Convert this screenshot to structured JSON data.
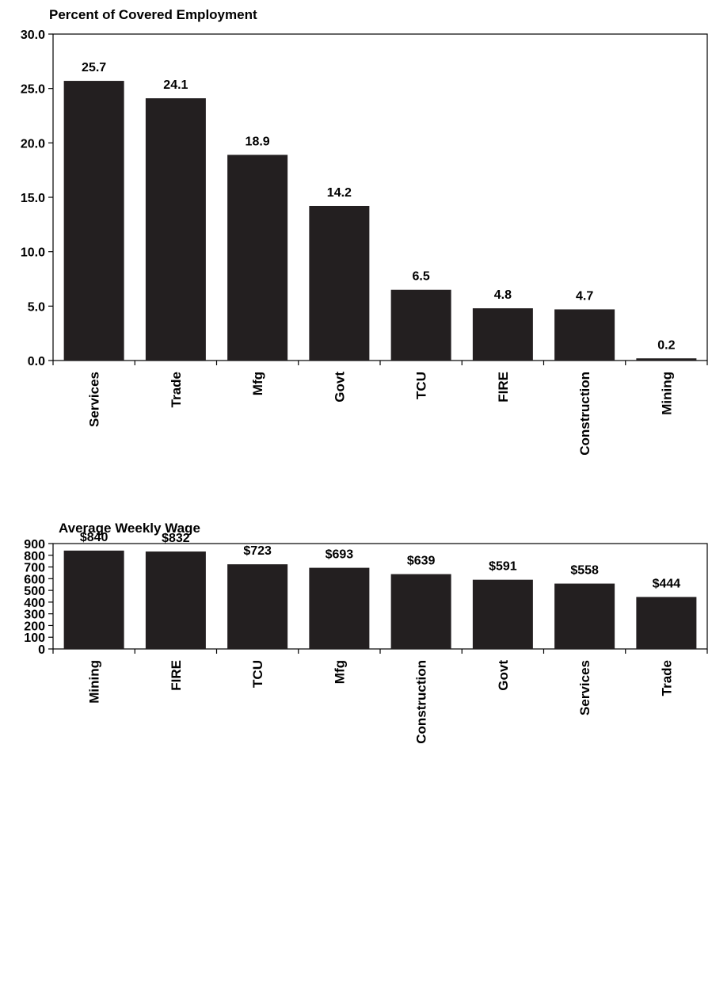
{
  "chart_data": [
    {
      "type": "bar",
      "title": "Percent of Covered Employment",
      "xlabel": "",
      "ylabel": "",
      "categories": [
        "Services",
        "Trade",
        "Mfg",
        "Govt",
        "TCU",
        "FIRE",
        "Construction",
        "Mining"
      ],
      "values": [
        25.7,
        24.1,
        18.9,
        14.2,
        6.5,
        4.8,
        4.7,
        0.2
      ],
      "data_labels": [
        "25.7",
        "24.1",
        "18.9",
        "14.2",
        "6.5",
        "4.8",
        "4.7",
        "0.2"
      ],
      "ylim": [
        0,
        30
      ],
      "yticks": [
        0,
        5,
        10,
        15,
        20,
        25,
        30
      ],
      "ytick_labels": [
        "0.0",
        "5.0",
        "10.0",
        "15.0",
        "20.0",
        "25.0",
        "30.0"
      ],
      "grid": false,
      "legend": "none",
      "bar_color": "#231f20"
    },
    {
      "type": "bar",
      "title": "Average Weekly Wage",
      "xlabel": "",
      "ylabel": "",
      "categories": [
        "Mining",
        "FIRE",
        "TCU",
        "Mfg",
        "Construction",
        "Govt",
        "Services",
        "Trade"
      ],
      "values": [
        840,
        832,
        723,
        693,
        639,
        591,
        558,
        444
      ],
      "data_labels": [
        "$840",
        "$832",
        "$723",
        "$693",
        "$639",
        "$591",
        "$558",
        "$444"
      ],
      "ylim": [
        0,
        900
      ],
      "yticks": [
        0,
        100,
        200,
        300,
        400,
        500,
        600,
        700,
        800,
        900
      ],
      "ytick_labels": [
        "0",
        "100",
        "200",
        "300",
        "400",
        "500",
        "600",
        "700",
        "800",
        "900"
      ],
      "grid": false,
      "legend": "none",
      "bar_color": "#231f20"
    }
  ]
}
